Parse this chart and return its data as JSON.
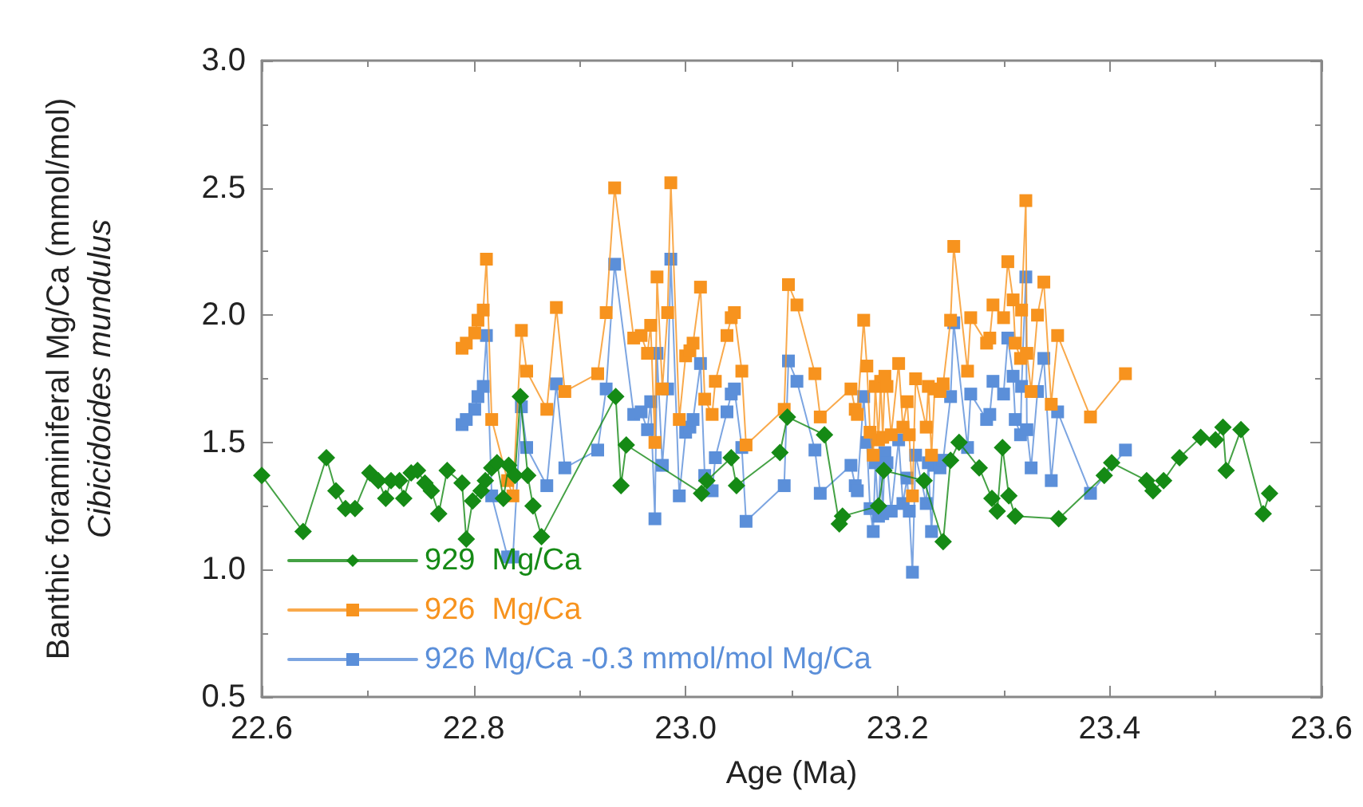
{
  "chart_data": {
    "type": "line",
    "xlabel": "Age (Ma)",
    "ylabel": "Banthic foraminiferal Mg/Ca (mmol/mol)\nCibicidoides mundulus",
    "x": [
      22.789,
      22.793,
      22.801,
      22.804,
      22.809,
      22.812,
      22.817,
      22.832,
      22.837,
      22.845,
      22.85,
      22.869,
      22.878,
      22.886,
      22.917,
      22.925,
      22.933,
      22.951,
      22.958,
      22.964,
      22.967,
      22.971,
      22.973,
      22.978,
      22.983,
      22.986,
      22.994,
      23.0,
      23.004,
      23.007,
      23.014,
      23.018,
      23.025,
      23.028,
      23.039,
      23.043,
      23.046,
      23.053,
      23.057,
      23.093,
      23.097,
      23.105,
      23.122,
      23.127,
      23.156,
      23.16,
      23.162,
      23.168,
      23.171,
      23.174,
      23.177,
      23.179,
      23.182,
      23.184,
      23.186,
      23.188,
      23.19,
      23.194,
      23.201,
      23.205,
      23.209,
      23.211,
      23.214,
      23.217,
      23.227,
      23.229,
      23.232,
      23.235,
      23.24,
      23.243,
      23.25,
      23.253,
      23.266,
      23.269,
      23.284,
      23.287,
      23.29,
      23.3,
      23.304,
      23.309,
      23.311,
      23.316,
      23.317,
      23.321,
      23.322,
      23.326,
      23.332,
      23.338,
      23.345,
      23.351,
      23.382,
      23.415
    ],
    "series": [
      {
        "name": "929  Mg/Ca",
        "color": "#158a15",
        "marker": "diamond",
        "x": [
          22.6,
          22.639,
          22.661,
          22.67,
          22.679,
          22.688,
          22.702,
          22.71,
          22.717,
          22.722,
          22.73,
          22.734,
          22.741,
          22.747,
          22.754,
          22.76,
          22.767,
          22.775,
          22.789,
          22.793,
          22.799,
          22.807,
          22.811,
          22.817,
          22.822,
          22.828,
          22.833,
          22.839,
          22.844,
          22.851,
          22.856,
          22.864,
          22.934,
          22.939,
          22.944,
          23.015,
          23.02,
          23.043,
          23.048,
          23.089,
          23.096,
          23.131,
          23.145,
          23.148,
          23.182,
          23.187,
          23.225,
          23.243,
          23.25,
          23.258,
          23.277,
          23.289,
          23.294,
          23.299,
          23.305,
          23.311,
          23.352,
          23.395,
          23.402,
          23.435,
          23.441,
          23.451,
          23.466,
          23.486,
          23.5,
          23.507,
          23.51,
          23.524,
          23.545,
          23.551
        ],
        "values": [
          1.37,
          1.15,
          1.44,
          1.31,
          1.24,
          1.24,
          1.38,
          1.35,
          1.28,
          1.35,
          1.35,
          1.28,
          1.38,
          1.39,
          1.34,
          1.31,
          1.22,
          1.39,
          1.34,
          1.12,
          1.27,
          1.31,
          1.35,
          1.4,
          1.42,
          1.28,
          1.41,
          1.37,
          1.68,
          1.37,
          1.25,
          1.13,
          1.68,
          1.33,
          1.49,
          1.3,
          1.35,
          1.44,
          1.33,
          1.46,
          1.6,
          1.53,
          1.18,
          1.21,
          1.25,
          1.39,
          1.35,
          1.11,
          1.43,
          1.5,
          1.4,
          1.28,
          1.23,
          1.48,
          1.29,
          1.21,
          1.2,
          1.37,
          1.42,
          1.35,
          1.31,
          1.35,
          1.44,
          1.52,
          1.51,
          1.56,
          1.39,
          1.55,
          1.22,
          1.3
        ]
      },
      {
        "name": "926  Mg/Ca",
        "color": "#f7931e",
        "marker": "square",
        "values": [
          1.87,
          1.89,
          1.93,
          1.98,
          2.02,
          2.22,
          1.59,
          1.35,
          1.29,
          1.94,
          1.78,
          1.63,
          2.03,
          1.7,
          1.77,
          2.01,
          2.5,
          1.91,
          1.92,
          1.85,
          1.96,
          1.5,
          2.15,
          1.71,
          2.01,
          2.52,
          1.59,
          1.84,
          1.86,
          1.89,
          2.11,
          1.67,
          1.61,
          1.74,
          1.92,
          1.99,
          2.01,
          1.78,
          1.49,
          1.63,
          2.12,
          2.04,
          1.77,
          1.6,
          1.71,
          1.63,
          1.61,
          1.98,
          1.8,
          1.54,
          1.45,
          1.72,
          1.51,
          1.74,
          1.52,
          1.76,
          1.72,
          1.53,
          1.81,
          1.56,
          1.66,
          1.53,
          1.29,
          1.75,
          1.56,
          1.72,
          1.45,
          1.71,
          1.7,
          1.73,
          1.98,
          2.27,
          1.78,
          1.99,
          1.89,
          1.91,
          2.04,
          1.99,
          2.21,
          2.06,
          1.89,
          1.83,
          2.02,
          2.45,
          1.85,
          1.7,
          2.0,
          2.13,
          1.65,
          1.92,
          1.6,
          1.77
        ]
      },
      {
        "name": "926 Mg/Ca -0.3 mmol/mol Mg/Ca",
        "color": "#5b8fd9",
        "marker": "square",
        "values": [
          1.57,
          1.59,
          1.63,
          1.68,
          1.72,
          1.92,
          1.29,
          1.05,
          1.05,
          1.64,
          1.48,
          1.33,
          1.73,
          1.4,
          1.47,
          1.71,
          2.2,
          1.61,
          1.62,
          1.55,
          1.66,
          1.2,
          1.85,
          1.41,
          1.71,
          2.22,
          1.29,
          1.54,
          1.56,
          1.59,
          1.81,
          1.37,
          1.31,
          1.44,
          1.62,
          1.69,
          1.71,
          1.48,
          1.19,
          1.33,
          1.82,
          1.74,
          1.47,
          1.3,
          1.41,
          1.33,
          1.31,
          1.68,
          1.5,
          1.24,
          1.15,
          1.42,
          1.21,
          1.44,
          1.22,
          1.46,
          1.42,
          1.23,
          1.51,
          1.26,
          1.36,
          1.23,
          0.99,
          1.45,
          1.26,
          1.42,
          1.15,
          1.41,
          1.4,
          1.43,
          1.68,
          1.97,
          1.48,
          1.69,
          1.59,
          1.61,
          1.74,
          1.69,
          1.91,
          1.76,
          1.59,
          1.53,
          1.72,
          2.15,
          1.55,
          1.4,
          1.7,
          1.83,
          1.35,
          1.62,
          1.3,
          1.47
        ]
      }
    ],
    "xlim": [
      22.6,
      23.6
    ],
    "xticks": [
      {
        "value": 22.6,
        "label": "22.6"
      },
      {
        "value": 22.8,
        "label": "22.8"
      },
      {
        "value": 23.0,
        "label": "23.0"
      },
      {
        "value": 23.2,
        "label": "23.2"
      },
      {
        "value": 23.4,
        "label": "23.4"
      },
      {
        "value": 23.6,
        "label": "23.6"
      }
    ],
    "ylim": [
      0.5,
      3.0
    ],
    "yticks": [
      {
        "value": 0.5,
        "label": "0.5"
      },
      {
        "value": 1.0,
        "label": "1.0"
      },
      {
        "value": 1.5,
        "label": "1.5"
      },
      {
        "value": 2.0,
        "label": "2.0"
      },
      {
        "value": 2.5,
        "label": "2.5"
      },
      {
        "value": 3.0,
        "label": "3.0"
      }
    ],
    "grid": false,
    "legend": "bottom left",
    "line_style": "solid"
  }
}
